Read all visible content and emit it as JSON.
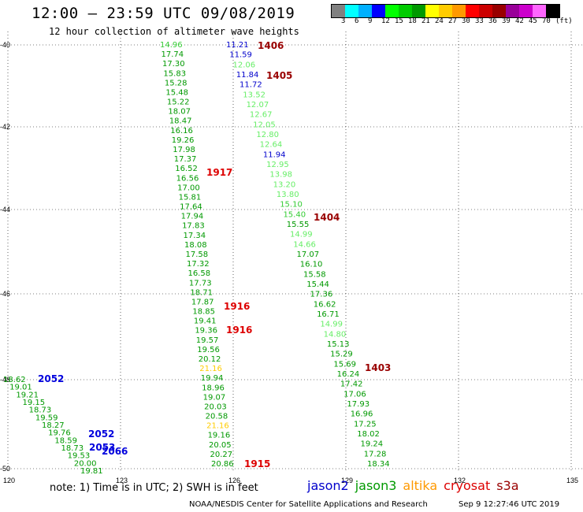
{
  "header": {
    "title": "12:00 — 23:59 UTC 09/08/2019",
    "subtitle": "12 hour collection of altimeter wave heights"
  },
  "legend": {
    "swatches": [
      "#808080",
      "#00ffff",
      "#00b0ff",
      "#0000ff",
      "#00ff00",
      "#00cc00",
      "#009900",
      "#ffff00",
      "#ffcc00",
      "#ff9900",
      "#ff0000",
      "#cc0000",
      "#990000",
      "#990099",
      "#cc00cc",
      "#ff66ff",
      "#000000"
    ],
    "labels": [
      "3",
      "6",
      "9",
      "12",
      "15",
      "18",
      "21",
      "24",
      "27",
      "30",
      "33",
      "36",
      "39",
      "42",
      "45",
      "70",
      "(ft)"
    ]
  },
  "axes": {
    "lat_ticks": [
      "-40",
      "-42",
      "-44",
      "-46",
      "-48",
      "-50"
    ],
    "lon_ticks": [
      "120",
      "123",
      "126",
      "129",
      "132",
      "135"
    ]
  },
  "tracks": [
    {
      "name": "pass-1917",
      "points": [
        {
          "v": "14.96",
          "c": "#33cc33"
        },
        {
          "v": "17.74",
          "c": "#009900"
        },
        {
          "v": "17.30",
          "c": "#009900"
        },
        {
          "v": "15.83",
          "c": "#009900"
        },
        {
          "v": "15.28",
          "c": "#009900"
        },
        {
          "v": "15.48",
          "c": "#009900"
        },
        {
          "v": "15.22",
          "c": "#009900"
        },
        {
          "v": "18.07",
          "c": "#009900"
        },
        {
          "v": "18.47",
          "c": "#009900"
        },
        {
          "v": "16.16",
          "c": "#009900"
        },
        {
          "v": "19.26",
          "c": "#009900"
        },
        {
          "v": "17.98",
          "c": "#009900"
        },
        {
          "v": "17.37",
          "c": "#009900"
        },
        {
          "v": "16.52",
          "c": "#009900"
        },
        {
          "v": "16.56",
          "c": "#009900"
        },
        {
          "v": "17.00",
          "c": "#009900"
        },
        {
          "v": "15.81",
          "c": "#009900"
        },
        {
          "v": "17.64",
          "c": "#009900"
        },
        {
          "v": "17.94",
          "c": "#009900"
        },
        {
          "v": "17.83",
          "c": "#009900"
        },
        {
          "v": "17.34",
          "c": "#009900"
        },
        {
          "v": "18.08",
          "c": "#009900"
        },
        {
          "v": "17.58",
          "c": "#009900"
        },
        {
          "v": "17.32",
          "c": "#009900"
        },
        {
          "v": "16.58",
          "c": "#009900"
        },
        {
          "v": "17.73",
          "c": "#009900"
        },
        {
          "v": "18.71",
          "c": "#009900"
        },
        {
          "v": "17.87",
          "c": "#009900"
        },
        {
          "v": "18.85",
          "c": "#009900"
        },
        {
          "v": "19.41",
          "c": "#009900"
        },
        {
          "v": "19.36",
          "c": "#009900"
        },
        {
          "v": "19.57",
          "c": "#009900"
        },
        {
          "v": "19.56",
          "c": "#009900"
        },
        {
          "v": "20.12",
          "c": "#009900"
        },
        {
          "v": "21.16",
          "c": "#ffcc00"
        },
        {
          "v": "19.94",
          "c": "#009900"
        },
        {
          "v": "18.96",
          "c": "#009900"
        },
        {
          "v": "19.07",
          "c": "#009900"
        },
        {
          "v": "20.03",
          "c": "#009900"
        },
        {
          "v": "20.58",
          "c": "#009900"
        },
        {
          "v": "21.16",
          "c": "#ffcc00"
        },
        {
          "v": "19.16",
          "c": "#009900"
        },
        {
          "v": "20.05",
          "c": "#009900"
        },
        {
          "v": "20.27",
          "c": "#009900"
        },
        {
          "v": "20.86",
          "c": "#009900"
        }
      ]
    },
    {
      "name": "pass-1405",
      "points": [
        {
          "v": "11.21",
          "c": "#0000cc"
        },
        {
          "v": "11.59",
          "c": "#0000cc"
        },
        {
          "v": "12.06",
          "c": "#66ee66"
        },
        {
          "v": "11.84",
          "c": "#0000cc"
        },
        {
          "v": "11.72",
          "c": "#0000cc"
        },
        {
          "v": "13.52",
          "c": "#66ee66"
        },
        {
          "v": "12.07",
          "c": "#66ee66"
        },
        {
          "v": "12.67",
          "c": "#66ee66"
        },
        {
          "v": "12.05",
          "c": "#66ee66"
        },
        {
          "v": "12.80",
          "c": "#66ee66"
        },
        {
          "v": "12.64",
          "c": "#66ee66"
        },
        {
          "v": "11.94",
          "c": "#0000cc"
        },
        {
          "v": "12.95",
          "c": "#66ee66"
        },
        {
          "v": "13.98",
          "c": "#66ee66"
        },
        {
          "v": "13.20",
          "c": "#66ee66"
        },
        {
          "v": "13.80",
          "c": "#66ee66"
        },
        {
          "v": "15.10",
          "c": "#33cc33"
        },
        {
          "v": "15.40",
          "c": "#33cc33"
        },
        {
          "v": "15.55",
          "c": "#009900"
        },
        {
          "v": "14.99",
          "c": "#66ee66"
        },
        {
          "v": "14.66",
          "c": "#66ee66"
        },
        {
          "v": "17.07",
          "c": "#009900"
        },
        {
          "v": "16.10",
          "c": "#009900"
        },
        {
          "v": "15.58",
          "c": "#009900"
        },
        {
          "v": "15.44",
          "c": "#009900"
        },
        {
          "v": "17.36",
          "c": "#009900"
        },
        {
          "v": "16.62",
          "c": "#009900"
        },
        {
          "v": "16.71",
          "c": "#009900"
        },
        {
          "v": "14.99",
          "c": "#66ee66"
        },
        {
          "v": "14.80",
          "c": "#66ee66"
        },
        {
          "v": "15.13",
          "c": "#009900"
        },
        {
          "v": "15.29",
          "c": "#009900"
        },
        {
          "v": "15.69",
          "c": "#009900"
        },
        {
          "v": "16.24",
          "c": "#009900"
        },
        {
          "v": "17.42",
          "c": "#009900"
        },
        {
          "v": "17.06",
          "c": "#009900"
        },
        {
          "v": "17.93",
          "c": "#009900"
        },
        {
          "v": "16.96",
          "c": "#009900"
        },
        {
          "v": "17.25",
          "c": "#009900"
        },
        {
          "v": "18.02",
          "c": "#009900"
        },
        {
          "v": "19.24",
          "c": "#009900"
        },
        {
          "v": "17.28",
          "c": "#009900"
        },
        {
          "v": "18.34",
          "c": "#009900"
        }
      ]
    },
    {
      "name": "pass-2052",
      "points": [
        {
          "v": "18.62",
          "c": "#009900"
        },
        {
          "v": "19.01",
          "c": "#009900"
        },
        {
          "v": "19.21",
          "c": "#009900"
        },
        {
          "v": "19.15",
          "c": "#009900"
        },
        {
          "v": "18.73",
          "c": "#009900"
        },
        {
          "v": "19.59",
          "c": "#009900"
        },
        {
          "v": "18.27",
          "c": "#009900"
        },
        {
          "v": "19.76",
          "c": "#009900"
        },
        {
          "v": "18.59",
          "c": "#009900"
        },
        {
          "v": "18.73",
          "c": "#009900"
        },
        {
          "v": "19.53",
          "c": "#009900"
        },
        {
          "v": "20.00",
          "c": "#009900"
        },
        {
          "v": "19.81",
          "c": "#009900"
        }
      ]
    }
  ],
  "pass_labels": [
    {
      "text": "1406",
      "c": "#990000"
    },
    {
      "text": "1405",
      "c": "#990000"
    },
    {
      "text": "1917",
      "c": "#dd0000"
    },
    {
      "text": "1404",
      "c": "#990000"
    },
    {
      "text": "1916",
      "c": "#dd0000"
    },
    {
      "text": "1916",
      "c": "#dd0000"
    },
    {
      "text": "1403",
      "c": "#990000"
    },
    {
      "text": "1915",
      "c": "#dd0000"
    },
    {
      "text": "2052",
      "c": "#0000dd"
    },
    {
      "text": "2052",
      "c": "#0000dd"
    },
    {
      "text": "2053",
      "c": "#0000dd"
    },
    {
      "text": "2066",
      "c": "#0000dd"
    }
  ],
  "footer": {
    "note": "note: 1) Time is in UTC; 2) SWH is in feet",
    "satellites": [
      {
        "name": "jason2",
        "color": "#0000cc"
      },
      {
        "name": "jason3",
        "color": "#009900"
      },
      {
        "name": "altika",
        "color": "#ff9900"
      },
      {
        "name": "cryosat",
        "color": "#dd0000"
      },
      {
        "name": "s3a",
        "color": "#990000"
      }
    ],
    "credit": "NOAA/NESDIS Center for Satellite Applications and Research",
    "timestamp": "Sep  9 12:27:46 UTC 2019"
  }
}
